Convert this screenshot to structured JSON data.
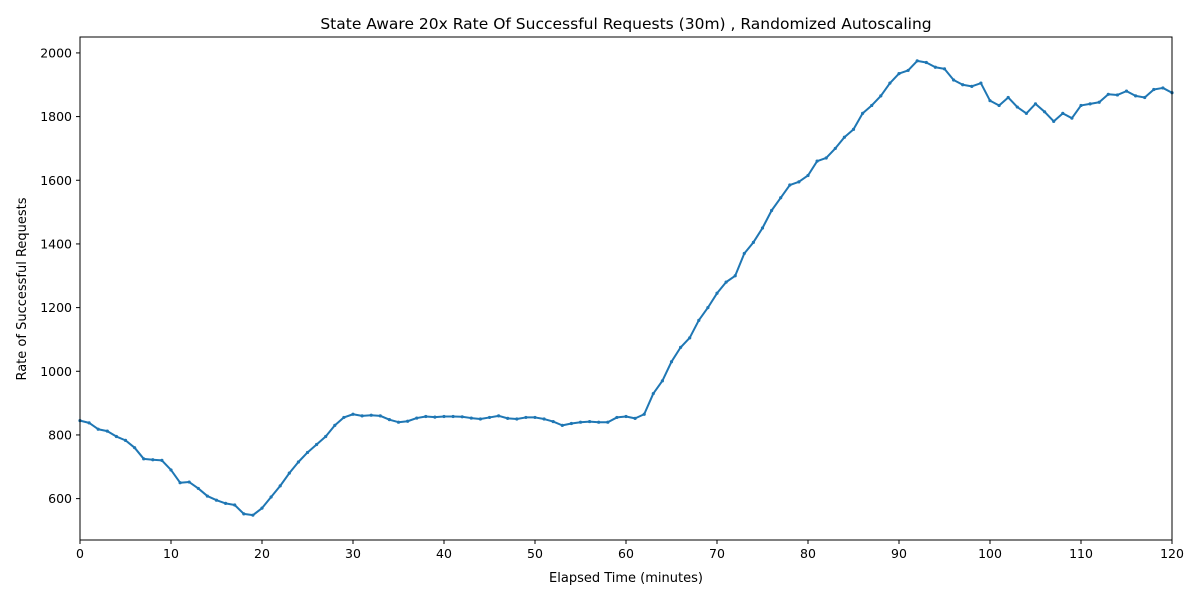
{
  "chart_data": {
    "type": "line",
    "title": "State Aware 20x Rate Of Successful Requests (30m) , Randomized Autoscaling",
    "xlabel": "Elapsed Time (minutes)",
    "ylabel": "Rate of Successful Requests",
    "xlim": [
      0,
      120
    ],
    "ylim": [
      470,
      2050
    ],
    "xticks": [
      0,
      10,
      20,
      30,
      40,
      50,
      60,
      70,
      80,
      90,
      100,
      110,
      120
    ],
    "yticks": [
      600,
      800,
      1000,
      1200,
      1400,
      1600,
      1800,
      2000
    ],
    "grid": false,
    "legend": "none",
    "series": [
      {
        "color": "#1f77b4",
        "x": [
          0,
          1,
          2,
          3,
          4,
          5,
          6,
          7,
          8,
          9,
          10,
          11,
          12,
          13,
          14,
          15,
          16,
          17,
          18,
          19,
          20,
          21,
          22,
          23,
          24,
          25,
          26,
          27,
          28,
          29,
          30,
          31,
          32,
          33,
          34,
          35,
          36,
          37,
          38,
          39,
          40,
          41,
          42,
          43,
          44,
          45,
          46,
          47,
          48,
          49,
          50,
          51,
          52,
          53,
          54,
          55,
          56,
          57,
          58,
          59,
          60,
          61,
          62,
          63,
          64,
          65,
          66,
          67,
          68,
          69,
          70,
          71,
          72,
          73,
          74,
          75,
          76,
          77,
          78,
          79,
          80,
          81,
          82,
          83,
          84,
          85,
          86,
          87,
          88,
          89,
          90,
          91,
          92,
          93,
          94,
          95,
          96,
          97,
          98,
          99,
          100,
          101,
          102,
          103,
          104,
          105,
          106,
          107,
          108,
          109,
          110,
          111,
          112,
          113,
          114,
          115,
          116,
          117,
          118,
          119,
          120
        ],
        "y": [
          845,
          838,
          818,
          812,
          795,
          783,
          760,
          725,
          722,
          720,
          690,
          650,
          652,
          632,
          608,
          595,
          585,
          580,
          552,
          548,
          570,
          605,
          640,
          680,
          715,
          745,
          770,
          795,
          830,
          855,
          865,
          860,
          862,
          860,
          848,
          840,
          843,
          853,
          858,
          856,
          858,
          858,
          857,
          853,
          850,
          855,
          860,
          852,
          850,
          855,
          855,
          850,
          842,
          830,
          836,
          840,
          842,
          840,
          840,
          855,
          858,
          852,
          865,
          930,
          970,
          1030,
          1075,
          1105,
          1160,
          1200,
          1245,
          1280,
          1300,
          1370,
          1405,
          1450,
          1505,
          1545,
          1585,
          1595,
          1615,
          1660,
          1670,
          1700,
          1735,
          1760,
          1810,
          1835,
          1865,
          1905,
          1935,
          1945,
          1975,
          1970,
          1955,
          1950,
          1915,
          1900,
          1895,
          1905,
          1850,
          1835,
          1860,
          1830,
          1810,
          1840,
          1815,
          1785,
          1810,
          1795,
          1835,
          1840,
          1845,
          1870,
          1868,
          1880,
          1865,
          1860,
          1885,
          1890,
          1875
        ]
      }
    ]
  }
}
